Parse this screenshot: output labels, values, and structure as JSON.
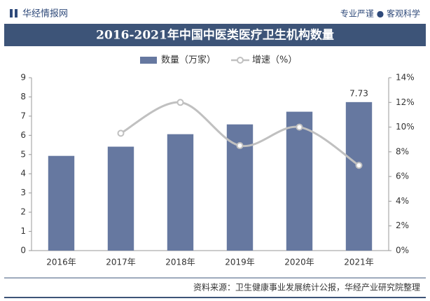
{
  "header": {
    "brand": "华经情报网",
    "slogan": "专业严谨 ● 客观科学"
  },
  "chart_data": {
    "type": "bar_line",
    "title": "2016-2021年中国中医类医疗卫生机构数量",
    "categories": [
      "2016年",
      "2017年",
      "2018年",
      "2019年",
      "2020年",
      "2021年"
    ],
    "series": [
      {
        "name": "数量（万家）",
        "type": "bar",
        "color": "#6678a0",
        "values": [
          4.93,
          5.41,
          6.06,
          6.57,
          7.23,
          7.73
        ],
        "value_labels": [
          null,
          null,
          null,
          null,
          null,
          "7.73"
        ]
      },
      {
        "name": "增速（%）",
        "type": "line",
        "axis": "y2",
        "color": "#c0c0c0",
        "values": [
          null,
          9.5,
          12.0,
          8.5,
          10.0,
          6.9
        ]
      }
    ],
    "ylim": [
      0,
      9
    ],
    "yticks": [
      0,
      1,
      2,
      3,
      4,
      5,
      6,
      7,
      8,
      9
    ],
    "y2lim": [
      0,
      14
    ],
    "y2ticks": [
      {
        "value": 0,
        "label": "0%"
      },
      {
        "value": 2,
        "label": "2%"
      },
      {
        "value": 4,
        "label": "4%"
      },
      {
        "value": 6,
        "label": "6%"
      },
      {
        "value": 8,
        "label": "8%"
      },
      {
        "value": 10,
        "label": "10%"
      },
      {
        "value": 12,
        "label": "12%"
      },
      {
        "value": 14,
        "label": "14%"
      }
    ],
    "legend": "top"
  },
  "footer": {
    "source": "资料来源：卫生健康事业发展统计公报，华经产业研究院整理"
  }
}
